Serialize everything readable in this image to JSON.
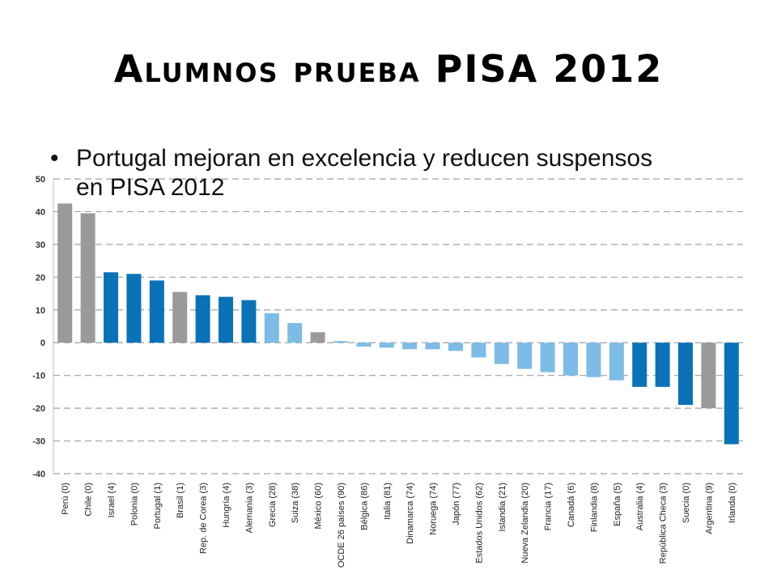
{
  "slide": {
    "title": "Alumnos prueba PISA 2012",
    "bullet_marker": "•",
    "bullet_text": "Portugal mejoran en excelencia y reducen suspensos en PISA 2012"
  },
  "colors": {
    "gray": "#9a9a9a",
    "dark_blue": "#0a72b9",
    "light_blue": "#7cbce6",
    "grid": "#a0a0a0"
  },
  "chart_data": {
    "type": "bar",
    "ylim": [
      -40,
      50
    ],
    "yticks": [
      50,
      40,
      30,
      20,
      10,
      0,
      -10,
      -20,
      -30,
      -40
    ],
    "grid": true,
    "categories": [
      "Perú (0)",
      "Chile (0)",
      "Israel (4)",
      "Polonia (0)",
      "Portugal (1)",
      "Brasil (1)",
      "Rep. de Corea (3)",
      "Hungría (4)",
      "Alemania (3)",
      "Grecia (28)",
      "Suiza (38)",
      "México (60)",
      "OCDE 26 países (90)",
      "Bélgica (86)",
      "Italia (81)",
      "Dinamarca (74)",
      "Noruega (74)",
      "Japón (77)",
      "Estados Unidos (62)",
      "Islandia (21)",
      "Nueva Zelandia (20)",
      "Francia (17)",
      "Canadá (6)",
      "Finlandia (8)",
      "España (5)",
      "Australia (4)",
      "República Checa (3)",
      "Suecia (0)",
      "Argentina (9)",
      "Irlanda (0)"
    ],
    "values": [
      42.5,
      39.5,
      21.5,
      21,
      19,
      15.5,
      14.5,
      14,
      13,
      9,
      6,
      3.2,
      0.5,
      -1.2,
      -1.5,
      -2,
      -2,
      -2.5,
      -4.5,
      -6.5,
      -8,
      -9,
      -10,
      -10.5,
      -11.5,
      -13.5,
      -13.5,
      -19,
      -20,
      -31
    ],
    "bar_colors": [
      "gray",
      "gray",
      "dark_blue",
      "dark_blue",
      "dark_blue",
      "gray",
      "dark_blue",
      "dark_blue",
      "dark_blue",
      "light_blue",
      "light_blue",
      "gray",
      "light_blue",
      "light_blue",
      "light_blue",
      "light_blue",
      "light_blue",
      "light_blue",
      "light_blue",
      "light_blue",
      "light_blue",
      "light_blue",
      "light_blue",
      "light_blue",
      "light_blue",
      "dark_blue",
      "dark_blue",
      "dark_blue",
      "gray",
      "dark_blue"
    ]
  }
}
